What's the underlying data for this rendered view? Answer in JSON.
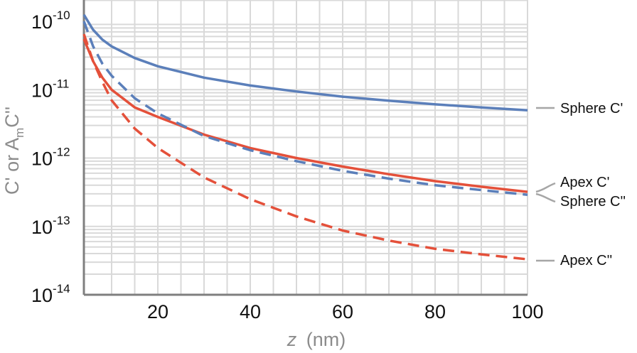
{
  "chart_data": {
    "type": "line",
    "xscale": "linear",
    "yscale": "log",
    "xlim": [
      4,
      100
    ],
    "ylim": [
      1e-14,
      1e-10
    ],
    "xticks": [
      20,
      40,
      60,
      80,
      100
    ],
    "xtick_labels": [
      "20",
      "40",
      "60",
      "80",
      "100"
    ],
    "yticks": [
      1e-14,
      1e-13,
      1e-12,
      1e-11,
      1e-10
    ],
    "ytick_labels": [
      {
        "base": "10",
        "exp": "-14"
      },
      {
        "base": "10",
        "exp": "-13"
      },
      {
        "base": "10",
        "exp": "-12"
      },
      {
        "base": "10",
        "exp": "-11"
      },
      {
        "base": "10",
        "exp": "-10"
      }
    ],
    "xlabel": {
      "var": "z",
      "unit": "(nm)"
    },
    "ylabel": {
      "p1": "C' or A",
      "sub": "m",
      "p2": "C''"
    },
    "grid": true,
    "legend_placement": "right",
    "colors": {
      "blue": "#5b7fba",
      "red": "#e4503a",
      "grid": "#d9d9d9",
      "axis": "#7f7f7f",
      "leader": "#a6a6a6"
    },
    "series": [
      {
        "name": "Sphere C'",
        "style": "solid",
        "color": "#5b7fba",
        "x": [
          4,
          6,
          8,
          10,
          15,
          20,
          30,
          40,
          50,
          60,
          70,
          80,
          90,
          100
        ],
        "y": [
          1.25e-10,
          7.5e-11,
          5.4e-11,
          4.3e-11,
          2.9e-11,
          2.2e-11,
          1.5e-11,
          1.15e-11,
          9.4e-12,
          7.9e-12,
          6.9e-12,
          6.1e-12,
          5.5e-12,
          5e-12
        ]
      },
      {
        "name": "Apex C'",
        "style": "solid",
        "color": "#e4503a",
        "x": [
          4,
          6,
          8,
          10,
          15,
          20,
          30,
          40,
          50,
          60,
          70,
          80,
          90,
          100
        ],
        "y": [
          5.5e-11,
          2.6e-11,
          1.5e-11,
          1e-11,
          5.5e-12,
          4e-12,
          2.2e-12,
          1.4e-12,
          1e-12,
          7.5e-13,
          5.8e-13,
          4.6e-13,
          3.8e-13,
          3.2e-13
        ]
      },
      {
        "name": "Sphere C''",
        "style": "dashed",
        "color": "#5b7fba",
        "x": [
          4,
          6,
          8,
          10,
          15,
          20,
          30,
          40,
          50,
          60,
          70,
          80,
          90,
          100
        ],
        "y": [
          1e-10,
          4.3e-11,
          2.4e-11,
          1.6e-11,
          7.5e-12,
          4.5e-12,
          2.1e-12,
          1.3e-12,
          9e-13,
          6.5e-13,
          5e-13,
          4e-13,
          3.4e-13,
          2.9e-13
        ]
      },
      {
        "name": "Apex C''",
        "style": "dashed",
        "color": "#e4503a",
        "x": [
          4,
          6,
          8,
          10,
          15,
          20,
          30,
          40,
          50,
          60,
          70,
          80,
          90,
          100
        ],
        "y": [
          6.5e-11,
          2.6e-11,
          1.3e-11,
          7e-12,
          2.7e-12,
          1.4e-12,
          5.2e-13,
          2.5e-13,
          1.4e-13,
          8.7e-14,
          6.2e-14,
          4.7e-14,
          3.9e-14,
          3.3e-14
        ]
      }
    ],
    "legend_entries": [
      {
        "label": "Sphere C'",
        "series": "Sphere C'"
      },
      {
        "label": "Apex C'",
        "series": "Apex C'"
      },
      {
        "label": "Sphere C''",
        "series": "Sphere C''"
      },
      {
        "label": "Apex C''",
        "series": "Apex C''"
      }
    ]
  }
}
